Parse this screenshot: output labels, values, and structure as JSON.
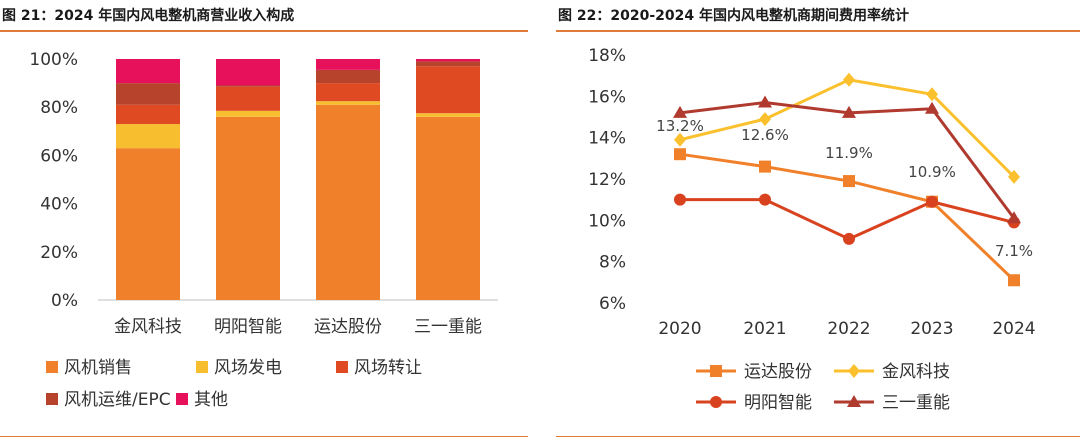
{
  "left": {
    "title": "图 21：2024 年国内风电整机商营业收入构成"
  },
  "right": {
    "title": "图 22：2020-2024 年国内风电整机商期间费用率统计"
  },
  "colors": {
    "orange": "#F0812A",
    "yellow": "#F7BE2F",
    "redorange": "#E04A23",
    "darkred": "#B8432D",
    "crimson": "#E6115A",
    "line_orange": "#F0812A",
    "line_yellow": "#FBC02D",
    "line_red": "#D9421E",
    "line_darkred": "#B03A2E",
    "accent": "#E07B39"
  },
  "chart_data": [
    {
      "type": "bar",
      "stacked": true,
      "categories": [
        "金风科技",
        "明阳智能",
        "运达股份",
        "三一重能"
      ],
      "ylim": [
        0,
        100
      ],
      "yticks": [
        "0%",
        "20%",
        "40%",
        "60%",
        "80%",
        "100%"
      ],
      "series": [
        {
          "name": "风机销售",
          "color": "#F0812A",
          "values": [
            63,
            76,
            81,
            76
          ]
        },
        {
          "name": "风场发电",
          "color": "#F7BE2F",
          "values": [
            10,
            2.5,
            1.5,
            1.5
          ]
        },
        {
          "name": "风场转让",
          "color": "#E04A23",
          "values": [
            8,
            10,
            7.5,
            19.5
          ]
        },
        {
          "name": "风机运维/EPC",
          "color": "#B8432D",
          "values": [
            9,
            0.5,
            5.5,
            2
          ]
        },
        {
          "name": "其他",
          "color": "#E6115A",
          "values": [
            10,
            11,
            4.5,
            1
          ]
        }
      ],
      "legend_position": "bottom"
    },
    {
      "type": "line",
      "x": [
        "2020",
        "2021",
        "2022",
        "2023",
        "2024"
      ],
      "ylim": [
        6,
        18
      ],
      "yticks": [
        "6%",
        "8%",
        "10%",
        "12%",
        "14%",
        "16%",
        "18%"
      ],
      "series": [
        {
          "name": "运达股份",
          "color": "#F0812A",
          "marker": "square",
          "values": [
            13.2,
            12.6,
            11.9,
            10.9,
            7.1
          ],
          "labels": [
            "13.2%",
            "12.6%",
            "11.9%",
            "10.9%",
            "7.1%"
          ]
        },
        {
          "name": "金风科技",
          "color": "#FBC02D",
          "marker": "diamond",
          "values": [
            13.9,
            14.9,
            16.8,
            16.1,
            12.1
          ]
        },
        {
          "name": "明阳智能",
          "color": "#D9421E",
          "marker": "circle",
          "values": [
            11.0,
            11.0,
            9.1,
            10.9,
            9.9
          ]
        },
        {
          "name": "三一重能",
          "color": "#B03A2E",
          "marker": "triangle",
          "values": [
            15.2,
            15.7,
            15.2,
            15.4,
            10.1
          ]
        }
      ],
      "legend_position": "bottom"
    }
  ]
}
